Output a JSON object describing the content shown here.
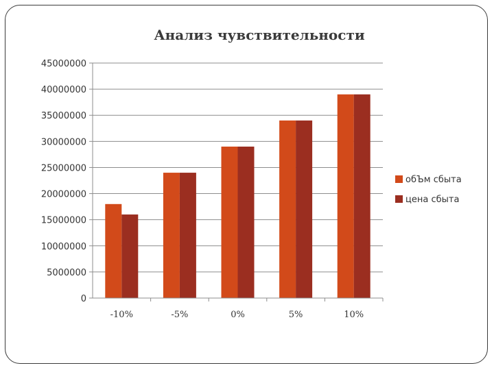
{
  "chart_data": {
    "type": "bar",
    "title": "Анализ чувствительности",
    "xlabel": "",
    "ylabel": "",
    "categories": [
      "-10%",
      "-5%",
      "0%",
      "5%",
      "10%"
    ],
    "series": [
      {
        "name": "обЪм сбыта",
        "values": [
          18000000,
          24000000,
          29000000,
          34000000,
          39000000
        ],
        "color": "#D24A1A"
      },
      {
        "name": "цена сбыта",
        "values": [
          16000000,
          24000000,
          29000000,
          34000000,
          39000000
        ],
        "color": "#9B2E20"
      }
    ],
    "ylim": [
      0,
      45000000
    ],
    "yticks": [
      "0",
      "5000000",
      "10000000",
      "15000000",
      "20000000",
      "25000000",
      "30000000",
      "35000000",
      "40000000",
      "45000000"
    ],
    "grid": true,
    "legend_position": "right"
  }
}
